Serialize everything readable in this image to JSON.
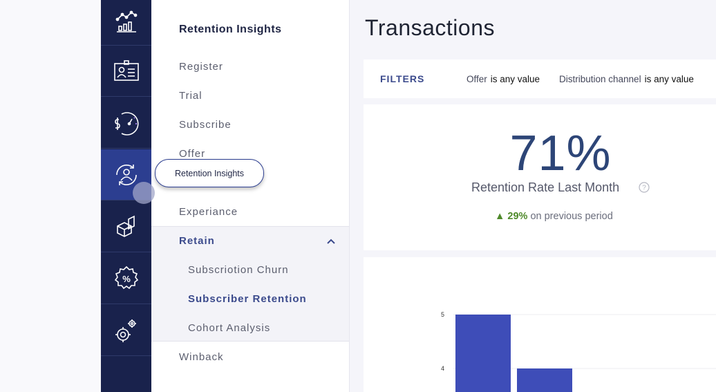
{
  "subnav": {
    "title": "Retention Insights",
    "items": [
      "Register",
      "Trial",
      "Subscribe",
      "Offer",
      "Experiance"
    ],
    "group": {
      "label": "Retain",
      "children": [
        "Subscriotion Churn",
        "Subscriber Retention",
        "Cohort Analysis"
      ],
      "selected": "Subscriber Retention"
    },
    "after": "Winback"
  },
  "rail": {
    "icons": [
      "analytics-icon",
      "id-card-icon",
      "pricing-gauge-icon",
      "retention-icon",
      "product-box-icon",
      "discount-badge-icon",
      "settings-icon"
    ],
    "active": "retention-icon"
  },
  "tooltip": {
    "text": "Retention Insights"
  },
  "page": {
    "title": "Transactions"
  },
  "filters": {
    "label": "FILTERS",
    "items": [
      {
        "field": "Offer",
        "value": "is any value"
      },
      {
        "field": "Distribution channel",
        "value": "is any value"
      }
    ]
  },
  "kpi": {
    "value": "71%",
    "label": "Retention Rate Last Month",
    "change_value": "29%",
    "change_text": "on previous period"
  },
  "colors": {
    "rail": "#19224c",
    "accent": "#2c3e90",
    "bar": "#3e4db8",
    "up": "#4f8a2b"
  },
  "chart_data": {
    "type": "bar",
    "y_ticks": [
      "5",
      "4"
    ],
    "values": [
      5,
      4
    ],
    "ylim": [
      3.4,
      5
    ]
  }
}
